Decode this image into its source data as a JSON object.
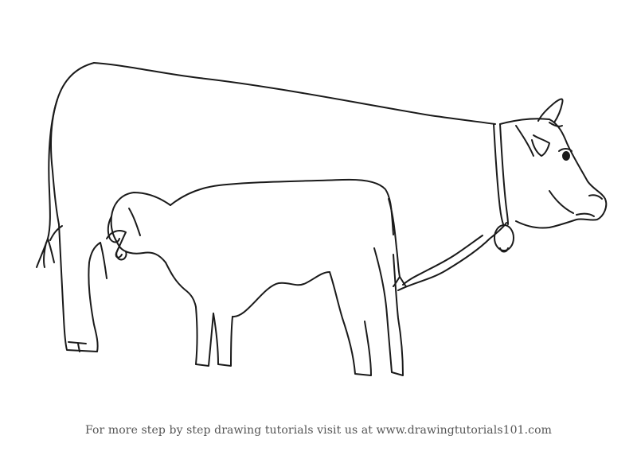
{
  "caption": "For more step by step drawing tutorials visit us at www.drawingtutorials101.com",
  "colors": {
    "ink": "#1a1a1a",
    "caption": "#555555",
    "background": "#ffffff"
  }
}
